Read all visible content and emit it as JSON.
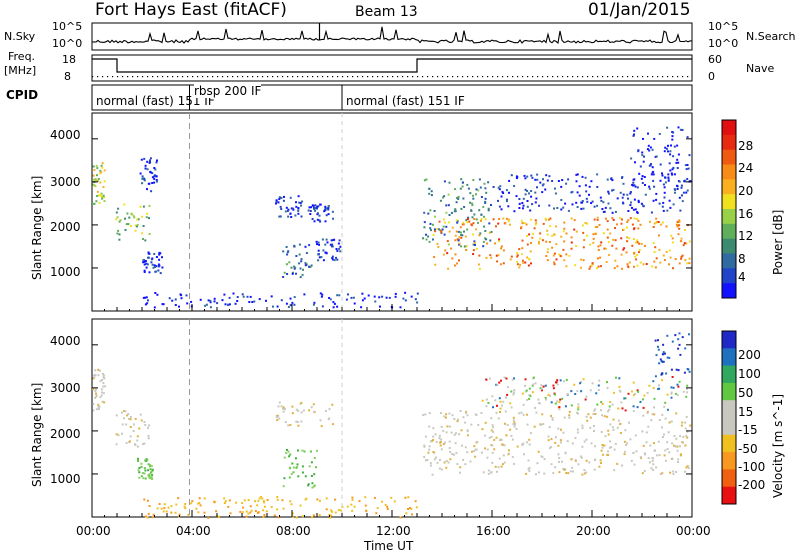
{
  "header": {
    "station": "Fort Hays East (fitACF)",
    "beam": "Beam 13",
    "date": "01/Jan/2015"
  },
  "top_panels": {
    "nsky_label": "N.Sky",
    "nsky_ticks": [
      "10^5",
      "10^0"
    ],
    "nsearch_label": "N.Search",
    "nsearch_ticks": [
      "10^5",
      "10^0"
    ],
    "freq_label_1": "Freq.",
    "freq_label_2": "[MHz]",
    "freq_ticks": [
      "18",
      "8"
    ],
    "nave_label": "Nave",
    "nave_ticks": [
      "60",
      "0"
    ],
    "cpid_label": "CPID",
    "cpid_segments": [
      {
        "label": "normal (fast) 151 IF",
        "start_hour": 0,
        "end_hour": 3.9
      },
      {
        "label": "rbsp 200 IF",
        "start_hour": 3.9,
        "end_hour": 10.0
      },
      {
        "label": "normal (fast) 151 IF",
        "start_hour": 10.0,
        "end_hour": 24
      }
    ]
  },
  "chart_data": [
    {
      "type": "heatmap",
      "panel": "power",
      "ylabel": "Slant Range [km]",
      "xlabel": "",
      "xlim_hours": [
        0,
        24
      ],
      "ylim": [
        0,
        4600
      ],
      "yticks": [
        "1000",
        "2000",
        "3000",
        "4000"
      ],
      "colorbar_label": "Power [dB]",
      "colorbar_ticks": [
        "4",
        "8",
        "12",
        "16",
        "20",
        "24",
        "28"
      ],
      "colorbar_colors": [
        "#1212ff",
        "#2244c8",
        "#2f6aa0",
        "#3c8a70",
        "#5fae5a",
        "#98d048",
        "#f0e020",
        "#f8b020",
        "#f88a18",
        "#f05a10",
        "#e82a10",
        "#e01010"
      ],
      "regions": [
        {
          "t": [
            0.0,
            0.5
          ],
          "r": [
            2500,
            3500
          ],
          "level": 0.55
        },
        {
          "t": [
            0.9,
            2.3
          ],
          "r": [
            1650,
            2500
          ],
          "level": 0.45
        },
        {
          "t": [
            1.9,
            2.6
          ],
          "r": [
            2800,
            3600
          ],
          "level": 0.1
        },
        {
          "t": [
            2.0,
            2.8
          ],
          "r": [
            900,
            1400
          ],
          "level": 0.05
        },
        {
          "t": [
            7.3,
            8.4
          ],
          "r": [
            2200,
            2700
          ],
          "level": 0.1
        },
        {
          "t": [
            8.6,
            9.6
          ],
          "r": [
            2100,
            2500
          ],
          "level": 0.1
        },
        {
          "t": [
            7.6,
            8.8
          ],
          "r": [
            800,
            1600
          ],
          "level": 0.25
        },
        {
          "t": [
            8.9,
            9.9
          ],
          "r": [
            1200,
            1700
          ],
          "level": 0.1
        },
        {
          "t": [
            13.2,
            16.0
          ],
          "r": [
            1500,
            3100
          ],
          "level": 0.3
        },
        {
          "t": [
            13.6,
            23.9
          ],
          "r": [
            1000,
            2200
          ],
          "level": 0.75
        },
        {
          "t": [
            16.0,
            23.9
          ],
          "r": [
            2300,
            3200
          ],
          "level": 0.08
        },
        {
          "t": [
            21.5,
            23.9
          ],
          "r": [
            2900,
            4300
          ],
          "level": 0.05
        },
        {
          "t": [
            2.0,
            13.0
          ],
          "r": [
            100,
            450
          ],
          "level": 0.05
        }
      ]
    },
    {
      "type": "heatmap",
      "panel": "velocity",
      "ylabel": "Slant Range [km]",
      "xlabel": "Time UT",
      "xlim_hours": [
        0,
        24
      ],
      "ylim": [
        0,
        4600
      ],
      "yticks": [
        "1000",
        "2000",
        "3000",
        "4000"
      ],
      "xticks": [
        "00:00",
        "04:00",
        "08:00",
        "12:00",
        "16:00",
        "20:00",
        "00:00"
      ],
      "colorbar_label": "Velocity [m s^-1]",
      "colorbar_ticks": [
        "200",
        "100",
        "50",
        "15",
        "-15",
        "-50",
        "-100",
        "-200"
      ],
      "colorbar_colors": [
        "#2028c8",
        "#2070c0",
        "#30a860",
        "#60c840",
        "#c8c8c0",
        "#c8c8c0",
        "#f0c020",
        "#f89820",
        "#f06010",
        "#e81010"
      ],
      "regions": [
        {
          "t": [
            0.0,
            0.5
          ],
          "r": [
            2500,
            3500
          ],
          "kind": "gray"
        },
        {
          "t": [
            0.9,
            2.3
          ],
          "r": [
            1650,
            2500
          ],
          "kind": "gray"
        },
        {
          "t": [
            1.8,
            2.4
          ],
          "r": [
            900,
            1400
          ],
          "kind": "green"
        },
        {
          "t": [
            7.3,
            9.6
          ],
          "r": [
            2100,
            2700
          ],
          "kind": "gray"
        },
        {
          "t": [
            7.6,
            9.0
          ],
          "r": [
            700,
            1600
          ],
          "kind": "green"
        },
        {
          "t": [
            13.2,
            23.9
          ],
          "r": [
            1000,
            2500
          ],
          "kind": "gray"
        },
        {
          "t": [
            15.5,
            23.9
          ],
          "r": [
            2500,
            3300
          ],
          "kind": "mixed"
        },
        {
          "t": [
            22.5,
            23.9
          ],
          "r": [
            3300,
            4300
          ],
          "kind": "blue"
        },
        {
          "t": [
            2.0,
            13.0
          ],
          "r": [
            0,
            500
          ],
          "kind": "orange"
        }
      ]
    }
  ]
}
